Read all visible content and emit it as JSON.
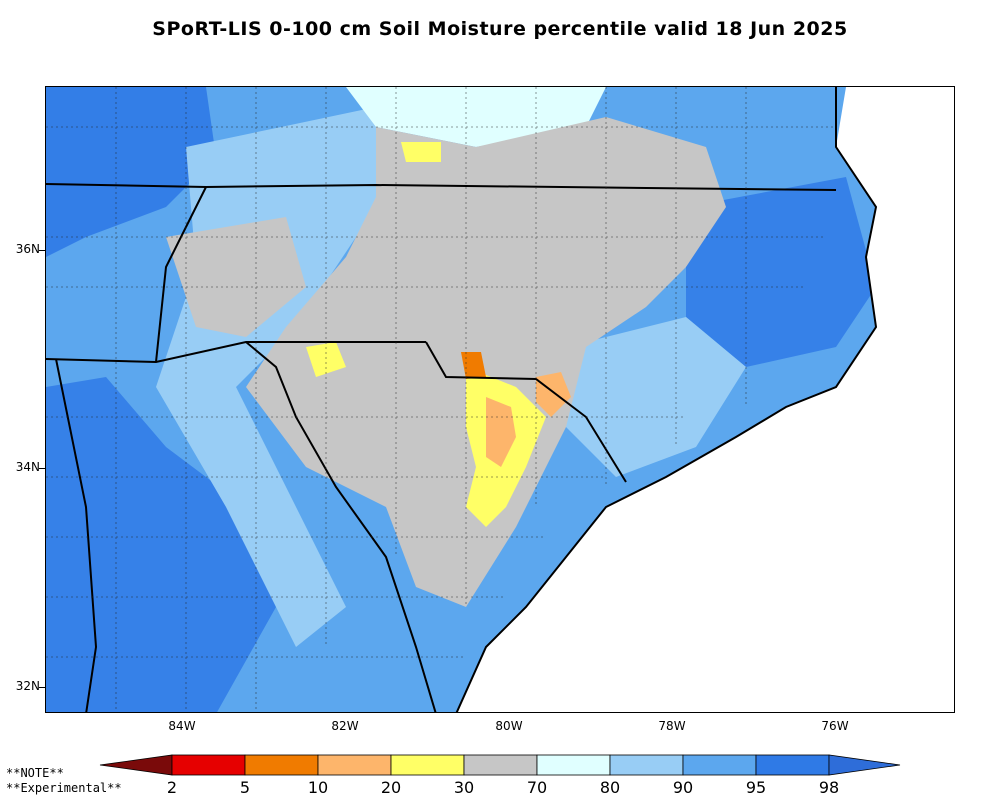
{
  "title": "SPoRT-LIS 0-100 cm Soil Moisture percentile valid 18 Jun 2025",
  "note_lines": [
    "**NOTE**",
    "**Experimental**"
  ],
  "latitude_labels": [
    "36N",
    "34N",
    "32N"
  ],
  "longitude_labels": [
    "84W",
    "82W",
    "80W",
    "78W",
    "76W"
  ],
  "colorbar": {
    "labels": [
      "2",
      "5",
      "10",
      "20",
      "30",
      "70",
      "80",
      "90",
      "95",
      "98"
    ],
    "colors": [
      "#7a0a0a",
      "#e60000",
      "#f07b00",
      "#fdb56b",
      "#ffff66",
      "#c6c6c6",
      "#e0ffff",
      "#98cdf5",
      "#5ca7ee",
      "#2f7ae6",
      "#2e6dd9"
    ]
  },
  "palette": {
    "background_water": "#ffffff",
    "land_default": "#5ca7ee"
  }
}
